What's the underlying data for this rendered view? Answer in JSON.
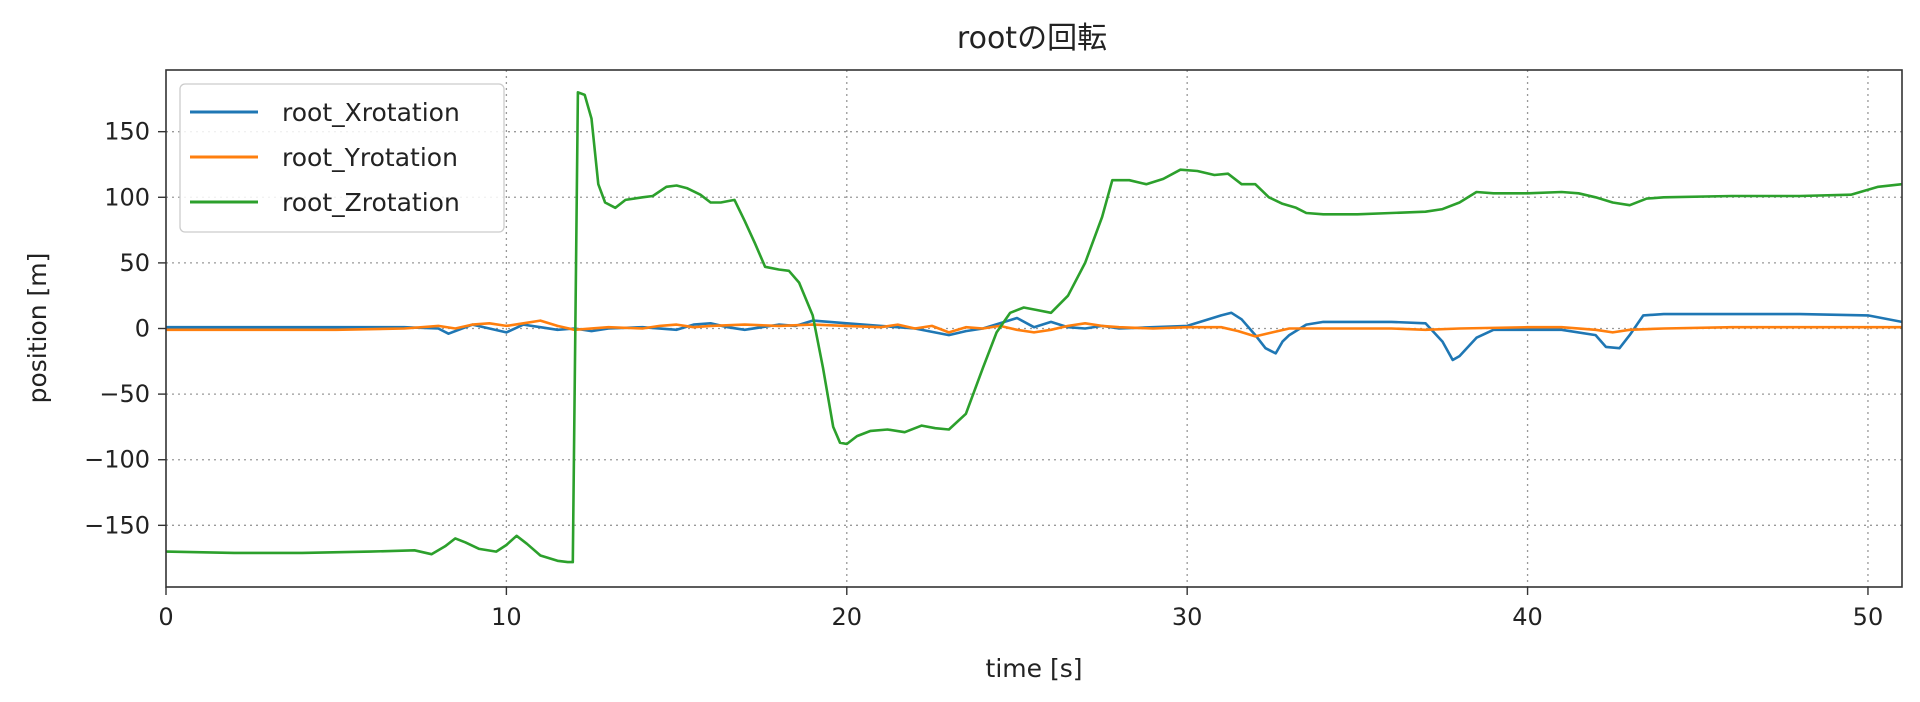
{
  "chart_data": {
    "type": "line",
    "title": "rootの回転",
    "xlabel": "time [s]",
    "ylabel": "position [m]",
    "xlim": [
      0,
      51
    ],
    "ylim": [
      -197,
      197
    ],
    "xticks": [
      0,
      10,
      20,
      30,
      40,
      50
    ],
    "yticks": [
      -150,
      -100,
      -50,
      0,
      50,
      100,
      150
    ],
    "tick_labels_x": [
      "0",
      "10",
      "20",
      "30",
      "40",
      "50"
    ],
    "tick_labels_y": [
      "−150",
      "−100",
      "−50",
      "0",
      "50",
      "100",
      "150"
    ],
    "grid": true,
    "legend": "top-left",
    "series": [
      {
        "name": "root_Xrotation",
        "color": "#1f77b4",
        "points": [
          [
            0,
            1
          ],
          [
            7,
            1
          ],
          [
            8,
            0
          ],
          [
            8.3,
            -4
          ],
          [
            8.7,
            0
          ],
          [
            9,
            3
          ],
          [
            9.5,
            0
          ],
          [
            10,
            -3
          ],
          [
            10.5,
            3
          ],
          [
            11,
            1
          ],
          [
            11.5,
            -1
          ],
          [
            12,
            0
          ],
          [
            12.5,
            -2
          ],
          [
            13,
            0
          ],
          [
            14,
            1
          ],
          [
            15,
            -1
          ],
          [
            15.5,
            3
          ],
          [
            16,
            4
          ],
          [
            16.5,
            1
          ],
          [
            17,
            -1
          ],
          [
            18,
            3
          ],
          [
            18.5,
            2
          ],
          [
            19,
            6
          ],
          [
            19.5,
            5
          ],
          [
            20,
            4
          ],
          [
            21,
            2
          ],
          [
            22,
            0
          ],
          [
            23,
            -5
          ],
          [
            23.5,
            -2
          ],
          [
            24,
            0
          ],
          [
            24.5,
            4
          ],
          [
            25,
            8
          ],
          [
            25.5,
            1
          ],
          [
            26,
            5
          ],
          [
            26.5,
            1
          ],
          [
            27,
            0
          ],
          [
            27.5,
            2
          ],
          [
            28,
            0
          ],
          [
            29,
            1
          ],
          [
            30,
            2
          ],
          [
            31,
            10
          ],
          [
            31.3,
            12
          ],
          [
            31.6,
            7
          ],
          [
            32,
            -5
          ],
          [
            32.3,
            -15
          ],
          [
            32.6,
            -19
          ],
          [
            32.8,
            -10
          ],
          [
            33,
            -5
          ],
          [
            33.5,
            3
          ],
          [
            34,
            5
          ],
          [
            35,
            5
          ],
          [
            36,
            5
          ],
          [
            37,
            4
          ],
          [
            37.5,
            -10
          ],
          [
            37.8,
            -24
          ],
          [
            38,
            -21
          ],
          [
            38.5,
            -7
          ],
          [
            39,
            -1
          ],
          [
            40,
            -1
          ],
          [
            41,
            -1
          ],
          [
            42,
            -5
          ],
          [
            42.3,
            -14
          ],
          [
            42.7,
            -15
          ],
          [
            43,
            -5
          ],
          [
            43.4,
            10
          ],
          [
            44,
            11
          ],
          [
            46,
            11
          ],
          [
            48,
            11
          ],
          [
            50,
            10
          ],
          [
            51,
            5
          ]
        ]
      },
      {
        "name": "root_Yrotation",
        "color": "#ff7f0e",
        "points": [
          [
            0,
            -1
          ],
          [
            5,
            -1
          ],
          [
            7,
            0
          ],
          [
            8,
            2
          ],
          [
            8.5,
            0
          ],
          [
            9,
            3
          ],
          [
            9.5,
            4
          ],
          [
            10,
            2
          ],
          [
            10.5,
            4
          ],
          [
            11,
            6
          ],
          [
            11.5,
            2
          ],
          [
            12,
            -1
          ],
          [
            13,
            1
          ],
          [
            14,
            0
          ],
          [
            14.5,
            2
          ],
          [
            15,
            3
          ],
          [
            15.5,
            1
          ],
          [
            16,
            2
          ],
          [
            17,
            3
          ],
          [
            18,
            2
          ],
          [
            19,
            3
          ],
          [
            20,
            2
          ],
          [
            21,
            1
          ],
          [
            21.5,
            3
          ],
          [
            22,
            0
          ],
          [
            22.5,
            2
          ],
          [
            23,
            -3
          ],
          [
            23.5,
            1
          ],
          [
            24,
            0
          ],
          [
            24.5,
            2
          ],
          [
            25,
            -1
          ],
          [
            25.5,
            -3
          ],
          [
            26,
            -1
          ],
          [
            26.5,
            2
          ],
          [
            27,
            4
          ],
          [
            27.5,
            2
          ],
          [
            28,
            1
          ],
          [
            29,
            0
          ],
          [
            30,
            1
          ],
          [
            31,
            1
          ],
          [
            31.5,
            -2
          ],
          [
            32,
            -6
          ],
          [
            32.5,
            -3
          ],
          [
            33,
            0
          ],
          [
            34,
            0
          ],
          [
            36,
            0
          ],
          [
            37,
            -1
          ],
          [
            38,
            0
          ],
          [
            40,
            1
          ],
          [
            41,
            1
          ],
          [
            42,
            -1
          ],
          [
            42.5,
            -3
          ],
          [
            43,
            -1
          ],
          [
            44,
            0
          ],
          [
            46,
            1
          ],
          [
            48,
            1
          ],
          [
            50,
            1
          ],
          [
            51,
            1
          ]
        ]
      },
      {
        "name": "root_Zrotation",
        "color": "#2ca02c",
        "points": [
          [
            0,
            -170
          ],
          [
            2,
            -171
          ],
          [
            4,
            -171
          ],
          [
            6,
            -170
          ],
          [
            7.3,
            -169
          ],
          [
            7.8,
            -172
          ],
          [
            8.2,
            -166
          ],
          [
            8.5,
            -160
          ],
          [
            8.8,
            -163
          ],
          [
            9.2,
            -168
          ],
          [
            9.7,
            -170
          ],
          [
            10,
            -165
          ],
          [
            10.3,
            -158
          ],
          [
            10.6,
            -164
          ],
          [
            11,
            -173
          ],
          [
            11.5,
            -177
          ],
          [
            11.8,
            -178
          ],
          [
            11.95,
            -178
          ],
          [
            12.1,
            180
          ],
          [
            12.3,
            178
          ],
          [
            12.5,
            160
          ],
          [
            12.7,
            110
          ],
          [
            12.9,
            96
          ],
          [
            13.2,
            92
          ],
          [
            13.5,
            98
          ],
          [
            14,
            100
          ],
          [
            14.3,
            101
          ],
          [
            14.7,
            108
          ],
          [
            15,
            109
          ],
          [
            15.3,
            107
          ],
          [
            15.7,
            102
          ],
          [
            16,
            96
          ],
          [
            16.3,
            96
          ],
          [
            16.7,
            98
          ],
          [
            17,
            82
          ],
          [
            17.3,
            65
          ],
          [
            17.6,
            47
          ],
          [
            18,
            45
          ],
          [
            18.3,
            44
          ],
          [
            18.6,
            35
          ],
          [
            19,
            10
          ],
          [
            19.3,
            -30
          ],
          [
            19.6,
            -75
          ],
          [
            19.8,
            -87
          ],
          [
            20,
            -88
          ],
          [
            20.3,
            -82
          ],
          [
            20.7,
            -78
          ],
          [
            21.2,
            -77
          ],
          [
            21.7,
            -79
          ],
          [
            22.2,
            -74
          ],
          [
            22.6,
            -76
          ],
          [
            23,
            -77
          ],
          [
            23.5,
            -65
          ],
          [
            24,
            -30
          ],
          [
            24.4,
            -3
          ],
          [
            24.8,
            12
          ],
          [
            25.2,
            16
          ],
          [
            25.6,
            14
          ],
          [
            26,
            12
          ],
          [
            26.5,
            25
          ],
          [
            27,
            50
          ],
          [
            27.5,
            85
          ],
          [
            27.8,
            113
          ],
          [
            28.3,
            113
          ],
          [
            28.8,
            110
          ],
          [
            29.3,
            114
          ],
          [
            29.8,
            121
          ],
          [
            30.3,
            120
          ],
          [
            30.8,
            117
          ],
          [
            31.2,
            118
          ],
          [
            31.6,
            110
          ],
          [
            32,
            110
          ],
          [
            32.4,
            100
          ],
          [
            32.8,
            95
          ],
          [
            33.2,
            92
          ],
          [
            33.5,
            88
          ],
          [
            34,
            87
          ],
          [
            35,
            87
          ],
          [
            36,
            88
          ],
          [
            37,
            89
          ],
          [
            37.5,
            91
          ],
          [
            38,
            96
          ],
          [
            38.5,
            104
          ],
          [
            39,
            103
          ],
          [
            40,
            103
          ],
          [
            41,
            104
          ],
          [
            41.5,
            103
          ],
          [
            42,
            100
          ],
          [
            42.5,
            96
          ],
          [
            43,
            94
          ],
          [
            43.5,
            99
          ],
          [
            44,
            100
          ],
          [
            46,
            101
          ],
          [
            48,
            101
          ],
          [
            49.5,
            102
          ],
          [
            50.3,
            108
          ],
          [
            51,
            110
          ]
        ]
      }
    ]
  }
}
